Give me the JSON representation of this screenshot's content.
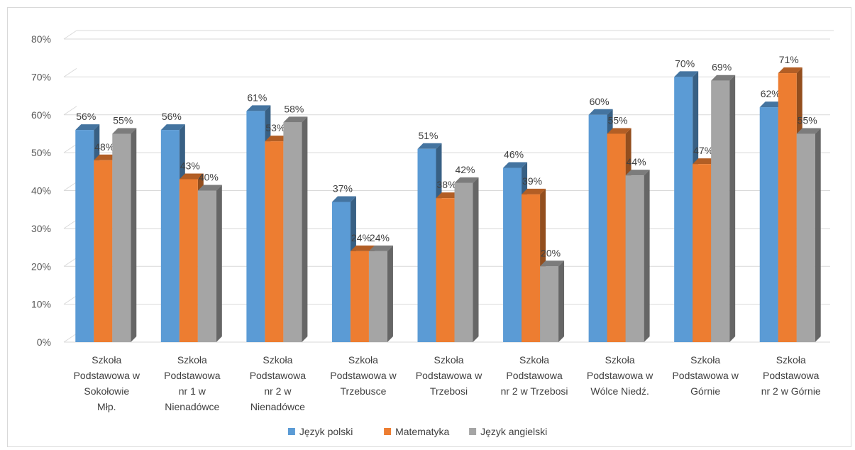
{
  "chart_data": {
    "type": "bar",
    "title": "",
    "xlabel": "",
    "ylabel": "",
    "ylim": [
      0,
      80
    ],
    "ytick_step": 10,
    "ytick_format": "percent",
    "grid": true,
    "legend_position": "bottom",
    "categories": [
      [
        "Szkoła",
        "Podstawowa w",
        "Sokołowie",
        "Młp."
      ],
      [
        "Szkoła",
        "Podstawowa",
        "nr 1 w",
        "Nienadówce"
      ],
      [
        "Szkoła",
        "Podstawowa",
        "nr 2 w",
        "Nienadówce"
      ],
      [
        "Szkoła",
        "Podstawowa w",
        "Trzebusce"
      ],
      [
        "Szkoła",
        "Podstawowa w",
        "Trzebosi"
      ],
      [
        "Szkoła",
        "Podstawowa",
        "nr 2 w Trzebosi"
      ],
      [
        "Szkoła",
        "Podstawowa w",
        "Wólce Niedź."
      ],
      [
        "Szkoła",
        "Podstawowa w",
        "Górnie"
      ],
      [
        "Szkoła",
        "Podstawowa",
        "nr 2 w Górnie"
      ]
    ],
    "series": [
      {
        "name": "Język polski",
        "color": "#5b9bd5",
        "values": [
          56,
          56,
          61,
          37,
          51,
          46,
          60,
          70,
          62
        ]
      },
      {
        "name": "Matematyka",
        "color": "#ed7d31",
        "values": [
          48,
          43,
          53,
          24,
          38,
          39,
          55,
          47,
          71
        ]
      },
      {
        "name": "Język angielski",
        "color": "#a5a5a5",
        "values": [
          55,
          40,
          58,
          24,
          42,
          20,
          44,
          69,
          55
        ]
      }
    ]
  }
}
